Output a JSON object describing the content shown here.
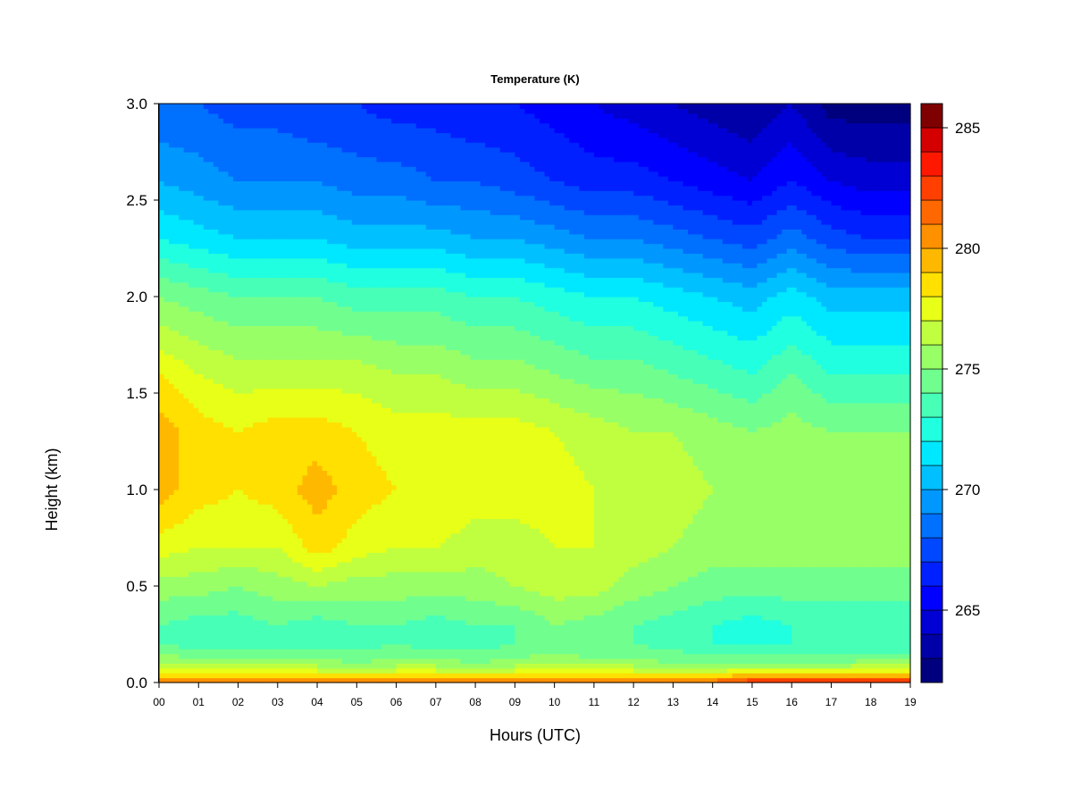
{
  "chart_data": {
    "type": "heatmap",
    "title": "Temperature (K)",
    "xlabel": "Hours (UTC)",
    "ylabel": "Height (km)",
    "xlim": [
      0,
      19
    ],
    "ylim": [
      0,
      3
    ],
    "x_ticks": [
      "00",
      "01",
      "02",
      "03",
      "04",
      "05",
      "06",
      "07",
      "08",
      "09",
      "10",
      "11",
      "12",
      "13",
      "14",
      "15",
      "16",
      "17",
      "18",
      "19"
    ],
    "y_ticks": [
      "0.0",
      "0.5",
      "1.0",
      "1.5",
      "2.0",
      "2.5",
      "3.0"
    ],
    "colorbar": {
      "label_ticks": [
        "265",
        "270",
        "275",
        "280",
        "285"
      ],
      "tick_values": [
        265,
        270,
        275,
        280,
        285
      ],
      "vmin": 262,
      "vmax": 286,
      "levels": 24,
      "colors": [
        "#00007F",
        "#0000A8",
        "#0000D4",
        "#0000FF",
        "#0020FF",
        "#0048FF",
        "#0070FF",
        "#0098FF",
        "#00C0FF",
        "#00E8FF",
        "#20FFDF",
        "#48FFB7",
        "#70FF8F",
        "#98FF67",
        "#C0FF3F",
        "#E8FF17",
        "#FFE000",
        "#FFB800",
        "#FF9000",
        "#FF6800",
        "#FF4000",
        "#FF1800",
        "#D40000",
        "#7F0000"
      ]
    },
    "x_hours": [
      0,
      1,
      2,
      3,
      4,
      5,
      6,
      7,
      8,
      9,
      10,
      11,
      12,
      13,
      14,
      15,
      16,
      17,
      18,
      19
    ],
    "heights_km": [
      0.0,
      0.05,
      0.1,
      0.2,
      0.3,
      0.5,
      0.7,
      1.0,
      1.3,
      1.6,
      2.0,
      2.3,
      2.6,
      3.0
    ],
    "temperature_profiles": [
      {
        "hour": 0,
        "values": [
          282.0,
          278.0,
          276.0,
          274.0,
          274.0,
          275.5,
          277.5,
          279.5,
          279.5,
          278.0,
          275.0,
          272.0,
          270.0,
          268.0
        ]
      },
      {
        "hour": 1,
        "values": [
          281.5,
          277.5,
          275.5,
          273.5,
          273.5,
          275.5,
          277.0,
          278.5,
          278.5,
          277.0,
          274.5,
          271.5,
          269.5,
          268.0
        ]
      },
      {
        "hour": 2,
        "values": [
          281.5,
          277.5,
          275.5,
          273.5,
          273.5,
          275.0,
          277.0,
          278.0,
          278.0,
          276.5,
          274.0,
          271.0,
          269.0,
          267.5
        ]
      },
      {
        "hour": 3,
        "values": [
          281.5,
          277.5,
          275.5,
          273.5,
          274.0,
          275.5,
          277.0,
          278.5,
          278.5,
          276.5,
          274.0,
          271.0,
          269.0,
          267.5
        ]
      },
      {
        "hour": 4,
        "values": [
          281.5,
          277.5,
          275.5,
          273.5,
          273.5,
          276.0,
          278.5,
          279.5,
          278.5,
          276.5,
          274.0,
          271.0,
          269.0,
          267.0
        ]
      },
      {
        "hour": 5,
        "values": [
          281.0,
          277.5,
          275.0,
          273.5,
          274.0,
          275.5,
          277.5,
          278.5,
          278.0,
          276.5,
          273.5,
          270.5,
          268.5,
          267.0
        ]
      },
      {
        "hour": 6,
        "values": [
          281.0,
          277.5,
          275.5,
          274.0,
          274.0,
          275.5,
          277.0,
          278.0,
          277.5,
          276.0,
          273.5,
          270.5,
          268.5,
          266.5
        ]
      },
      {
        "hour": 7,
        "values": [
          281.0,
          277.5,
          275.5,
          273.5,
          273.5,
          275.5,
          277.0,
          278.0,
          277.5,
          276.0,
          273.5,
          270.5,
          268.0,
          266.5
        ]
      },
      {
        "hour": 8,
        "values": [
          281.0,
          277.5,
          275.0,
          273.5,
          274.0,
          275.5,
          276.5,
          277.5,
          277.5,
          275.5,
          273.0,
          270.0,
          268.0,
          266.0
        ]
      },
      {
        "hour": 9,
        "values": [
          281.0,
          277.5,
          275.5,
          274.0,
          274.0,
          276.0,
          276.5,
          277.5,
          277.5,
          275.5,
          273.0,
          270.0,
          267.5,
          266.0
        ]
      },
      {
        "hour": 10,
        "values": [
          281.0,
          277.5,
          275.5,
          274.5,
          275.0,
          276.5,
          277.0,
          277.5,
          277.0,
          275.0,
          272.5,
          269.5,
          267.0,
          265.5
        ]
      },
      {
        "hour": 11,
        "values": [
          281.0,
          277.5,
          275.5,
          274.0,
          274.5,
          276.5,
          277.0,
          277.0,
          276.5,
          274.5,
          272.0,
          269.0,
          266.5,
          265.0
        ]
      },
      {
        "hour": 12,
        "values": [
          281.0,
          277.5,
          275.5,
          274.0,
          274.0,
          275.5,
          276.5,
          277.0,
          276.0,
          274.5,
          272.0,
          269.0,
          266.5,
          264.5
        ]
      },
      {
        "hour": 13,
        "values": [
          281.5,
          277.5,
          275.0,
          273.5,
          273.5,
          275.0,
          276.0,
          276.5,
          276.0,
          274.0,
          271.5,
          268.5,
          266.0,
          264.0
        ]
      },
      {
        "hour": 14,
        "values": [
          282.0,
          277.5,
          275.0,
          273.0,
          273.0,
          274.5,
          275.5,
          276.0,
          275.5,
          273.5,
          271.0,
          268.0,
          265.5,
          263.5
        ]
      },
      {
        "hour": 15,
        "values": [
          283.5,
          278.0,
          275.0,
          273.0,
          272.5,
          274.5,
          275.5,
          276.0,
          275.0,
          273.0,
          270.5,
          267.5,
          265.0,
          263.0
        ]
      },
      {
        "hour": 16,
        "values": [
          284.0,
          278.0,
          275.0,
          273.0,
          273.0,
          274.5,
          275.5,
          276.0,
          275.5,
          274.0,
          271.5,
          268.5,
          266.0,
          264.0
        ]
      },
      {
        "hour": 17,
        "values": [
          283.5,
          278.0,
          275.0,
          273.0,
          273.0,
          274.5,
          275.5,
          275.5,
          275.0,
          273.0,
          270.5,
          267.5,
          265.0,
          262.5
        ]
      },
      {
        "hour": 18,
        "values": [
          284.0,
          278.5,
          275.5,
          273.0,
          273.0,
          274.5,
          275.5,
          276.0,
          275.0,
          273.0,
          270.5,
          267.0,
          264.5,
          262.5
        ]
      },
      {
        "hour": 19,
        "values": [
          284.5,
          278.5,
          275.5,
          273.0,
          273.0,
          274.5,
          275.5,
          276.0,
          275.0,
          273.0,
          270.5,
          267.0,
          264.5,
          262.5
        ]
      }
    ]
  }
}
